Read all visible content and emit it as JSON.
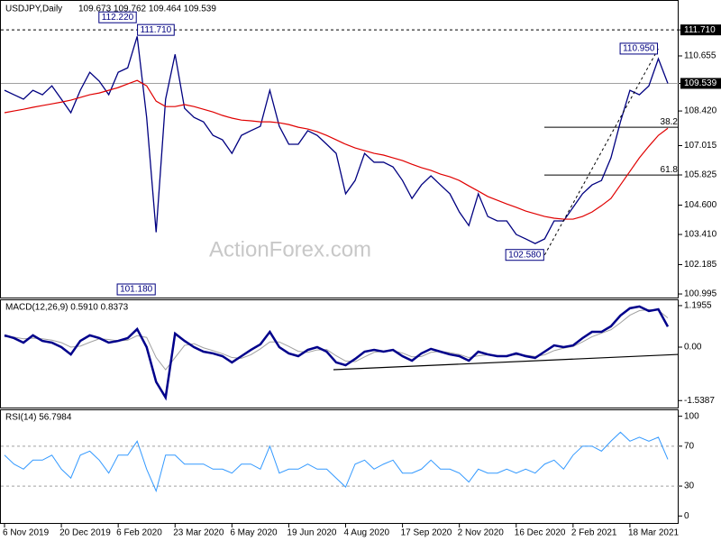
{
  "chart_data": [
    {
      "type": "line",
      "title": "USDJPY,Daily",
      "subtitle": "109.673 109.762 109.464 109.539",
      "watermark": "ActionForex.com",
      "categories": [
        "6 Nov 2019",
        null,
        null,
        null,
        null,
        null,
        "20 Dec 2019",
        null,
        null,
        null,
        null,
        null,
        "6 Feb 2020",
        null,
        null,
        null,
        null,
        null,
        "23 Mar 2020",
        null,
        null,
        null,
        null,
        null,
        "6 May 2020",
        null,
        null,
        null,
        null,
        null,
        "19 Jun 2020",
        null,
        null,
        null,
        null,
        null,
        "4 Aug 2020",
        null,
        null,
        null,
        null,
        null,
        "17 Sep 2020",
        null,
        null,
        null,
        null,
        null,
        "2 Nov 2020",
        null,
        null,
        null,
        null,
        null,
        "16 Dec 2020",
        null,
        null,
        null,
        null,
        null,
        "2 Feb 2021",
        null,
        null,
        null,
        null,
        null,
        "18 Mar 2021",
        null,
        null,
        null,
        null
      ],
      "series": [
        {
          "color": "#000080",
          "values": [
            109.26,
            109.08,
            108.9,
            109.26,
            109.08,
            109.44,
            108.9,
            108.35,
            109.26,
            109.99,
            109.63,
            109.08,
            109.99,
            110.17,
            111.45,
            108.16,
            103.5,
            108.9,
            110.72,
            108.53,
            108.16,
            107.98,
            107.43,
            107.25,
            106.7,
            107.43,
            107.62,
            107.8,
            109.26,
            107.8,
            107.07,
            107.07,
            107.62,
            107.43,
            107.07,
            106.7,
            105.06,
            105.6,
            106.7,
            106.34,
            106.34,
            106.15,
            105.6,
            104.87,
            105.42,
            105.79,
            105.42,
            105.06,
            104.32,
            103.77,
            105.06,
            104.14,
            103.96,
            103.96,
            103.41,
            103.23,
            103.04,
            103.23,
            103.96,
            103.96,
            104.51,
            105.06,
            105.42,
            105.6,
            106.52,
            107.98,
            109.26,
            109.08,
            109.44,
            110.54,
            109.54
          ]
        },
        {
          "color": "#e00000",
          "values": [
            108.35,
            108.42,
            108.49,
            108.57,
            108.64,
            108.71,
            108.78,
            108.86,
            108.97,
            109.08,
            109.15,
            109.26,
            109.37,
            109.52,
            109.66,
            109.44,
            108.82,
            108.6,
            108.6,
            108.68,
            108.6,
            108.49,
            108.38,
            108.24,
            108.13,
            108.05,
            108.02,
            107.98,
            107.98,
            107.94,
            107.87,
            107.76,
            107.69,
            107.58,
            107.43,
            107.25,
            107.07,
            106.92,
            106.81,
            106.7,
            106.63,
            106.52,
            106.41,
            106.26,
            106.12,
            106.01,
            105.86,
            105.75,
            105.6,
            105.38,
            105.17,
            104.95,
            104.8,
            104.65,
            104.51,
            104.36,
            104.25,
            104.14,
            104.07,
            104.03,
            104.03,
            104.14,
            104.32,
            104.58,
            104.87,
            105.42,
            105.97,
            106.52,
            106.99,
            107.43,
            107.72
          ]
        }
      ],
      "ylim": [
        100.85,
        112.85
      ],
      "yticks": [
        {
          "value": 111.71,
          "label": "111.710"
        },
        110.655,
        109.539,
        {
          "value": 108.42,
          "label": "108.420"
        },
        107.015,
        105.825,
        {
          "value": 104.6,
          "label": "104.600"
        },
        {
          "value": 103.41,
          "label": "103.410"
        },
        102.185,
        100.995
      ],
      "reference_lines": [
        {
          "value": 111.71,
          "style": "dashed"
        },
        {
          "value": 109.539,
          "style": "solid"
        }
      ],
      "annotations": [
        {
          "x": 14,
          "value": 112.22,
          "label": "112.220"
        },
        {
          "x": 18,
          "value": 111.71,
          "label": "111.710"
        },
        {
          "x": 16,
          "value": 101.18,
          "label": "101.180"
        },
        {
          "x": 57,
          "value": 102.58,
          "label": "102.580"
        },
        {
          "x": 69,
          "value": 110.95,
          "label": "110.950"
        }
      ],
      "trend_line": {
        "from": {
          "x": 57,
          "value": 102.58
        },
        "to": {
          "x": 69,
          "value": 110.95
        }
      },
      "fib_levels": [
        {
          "level": 38.2,
          "value": 107.76
        },
        {
          "level": 61.8,
          "value": 105.82
        }
      ]
    },
    {
      "type": "macd",
      "title": "MACD(12,26,9) 0.5910 0.8373",
      "series": [
        {
          "color": "#00008b",
          "values": [
            0.34,
            0.26,
            0.13,
            0.34,
            0.18,
            0.13,
            0,
            -0.21,
            0.18,
            0.34,
            0.26,
            0.13,
            0.18,
            0.26,
            0.52,
            0,
            -1.0,
            -1.45,
            0.39,
            0.18,
            0,
            -0.13,
            -0.18,
            -0.26,
            -0.44,
            -0.26,
            -0.08,
            0.08,
            0.44,
            0,
            -0.18,
            -0.26,
            -0.08,
            0,
            -0.13,
            -0.44,
            -0.52,
            -0.34,
            -0.13,
            -0.08,
            -0.13,
            -0.08,
            -0.26,
            -0.39,
            -0.18,
            -0.05,
            -0.13,
            -0.21,
            -0.26,
            -0.39,
            -0.13,
            -0.21,
            -0.26,
            -0.26,
            -0.18,
            -0.26,
            -0.31,
            -0.13,
            0.05,
            0,
            0.05,
            0.26,
            0.44,
            0.44,
            0.6,
            0.91,
            1.12,
            1.17,
            1.04,
            1.09,
            0.59
          ]
        },
        {
          "color": "#a0a0a0",
          "values": [
            0.3,
            0.29,
            0.24,
            0.26,
            0.24,
            0.2,
            0.13,
            0,
            0.03,
            0.14,
            0.24,
            0.22,
            0.18,
            0.2,
            0.33,
            0.28,
            -0.3,
            -0.65,
            -0.3,
            0.05,
            0.1,
            -0.02,
            -0.1,
            -0.19,
            -0.3,
            -0.32,
            -0.22,
            -0.05,
            0.15,
            0.15,
            0.02,
            -0.12,
            -0.15,
            -0.08,
            -0.07,
            -0.25,
            -0.4,
            -0.42,
            -0.28,
            -0.15,
            -0.12,
            -0.1,
            -0.17,
            -0.28,
            -0.27,
            -0.15,
            -0.12,
            -0.16,
            -0.21,
            -0.3,
            -0.25,
            -0.22,
            -0.24,
            -0.25,
            -0.22,
            -0.23,
            -0.27,
            -0.22,
            -0.1,
            -0.03,
            0.02,
            0.15,
            0.3,
            0.4,
            0.5,
            0.7,
            0.92,
            1.05,
            1.08,
            1.06,
            0.84
          ]
        }
      ],
      "ylim": [
        -1.74,
        1.35
      ],
      "yticks": [
        1.1955,
        {
          "value": 0,
          "label": "0.00"
        },
        -1.5387
      ],
      "trend_line": {
        "from": -0.65,
        "to": -0.21
      }
    },
    {
      "type": "rsi",
      "title": "RSI(14) 56.7984",
      "series": [
        {
          "color": "#3399ff",
          "values": [
            61,
            52,
            47,
            56,
            56,
            61,
            47,
            38,
            61,
            65,
            56,
            43,
            61,
            61,
            75,
            47,
            25,
            61,
            61,
            52,
            52,
            52,
            47,
            47,
            43,
            52,
            52,
            47,
            70,
            43,
            47,
            47,
            52,
            47,
            47,
            38,
            29,
            52,
            56,
            47,
            52,
            56,
            43,
            43,
            47,
            56,
            47,
            47,
            43,
            34,
            47,
            43,
            43,
            47,
            43,
            47,
            43,
            52,
            56,
            47,
            61,
            70,
            70,
            65,
            75,
            84,
            75,
            79,
            75,
            79,
            56.8
          ]
        }
      ],
      "ylim": [
        -7,
        106
      ],
      "yticks": [
        100,
        70,
        30,
        0
      ],
      "levels": [
        70,
        30
      ]
    }
  ]
}
